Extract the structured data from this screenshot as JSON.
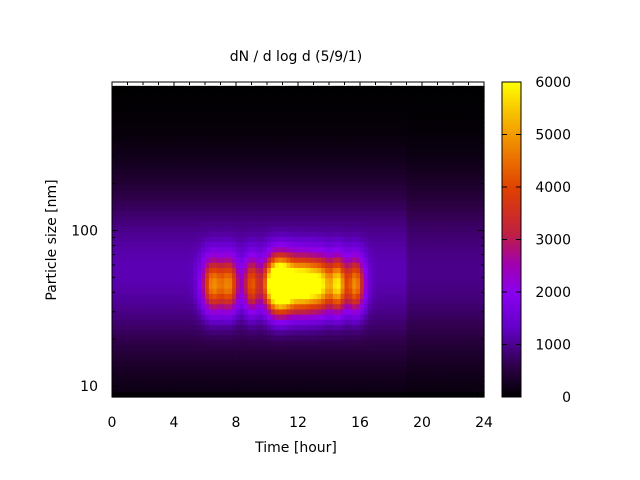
{
  "chart_data": {
    "type": "heatmap",
    "title": "dN / d log d (5/9/1)",
    "xlabel": "Time [hour]",
    "ylabel": "Particle size [nm]",
    "x_range": [
      0,
      24
    ],
    "x_ticks": [
      0,
      4,
      8,
      12,
      16,
      20,
      24
    ],
    "x_tick_labels": [
      "0",
      "4",
      "8",
      "12",
      "16",
      "20",
      "24"
    ],
    "y_scale": "log",
    "y_range": [
      8.5,
      900
    ],
    "y_ticks": [
      10,
      100
    ],
    "y_tick_labels": [
      "10",
      "100"
    ],
    "colorbar": {
      "range": [
        0,
        6000
      ],
      "ticks": [
        0,
        1000,
        2000,
        3000,
        4000,
        5000,
        6000
      ],
      "tick_labels": [
        "0",
        "1000",
        "2000",
        "3000",
        "4000",
        "5000",
        "6000"
      ],
      "palette": "black-purple-red-orange-yellow"
    },
    "mode_diameter_nm": 45,
    "background_level": 1200,
    "events": [
      {
        "time_hour": 6.5,
        "width_hour": 0.7,
        "peak": 3600
      },
      {
        "time_hour": 7.6,
        "width_hour": 0.6,
        "peak": 3300
      },
      {
        "time_hour": 9.0,
        "width_hour": 0.5,
        "peak": 3000
      },
      {
        "time_hour": 10.5,
        "width_hour": 0.8,
        "peak": 4600
      },
      {
        "time_hour": 11.2,
        "width_hour": 0.9,
        "peak": 5300
      },
      {
        "time_hour": 12.4,
        "width_hour": 0.8,
        "peak": 4600
      },
      {
        "time_hour": 13.5,
        "width_hour": 0.8,
        "peak": 4300
      },
      {
        "time_hour": 14.6,
        "width_hour": 0.5,
        "peak": 4000
      },
      {
        "time_hour": 15.7,
        "width_hour": 0.6,
        "peak": 3700
      }
    ]
  }
}
